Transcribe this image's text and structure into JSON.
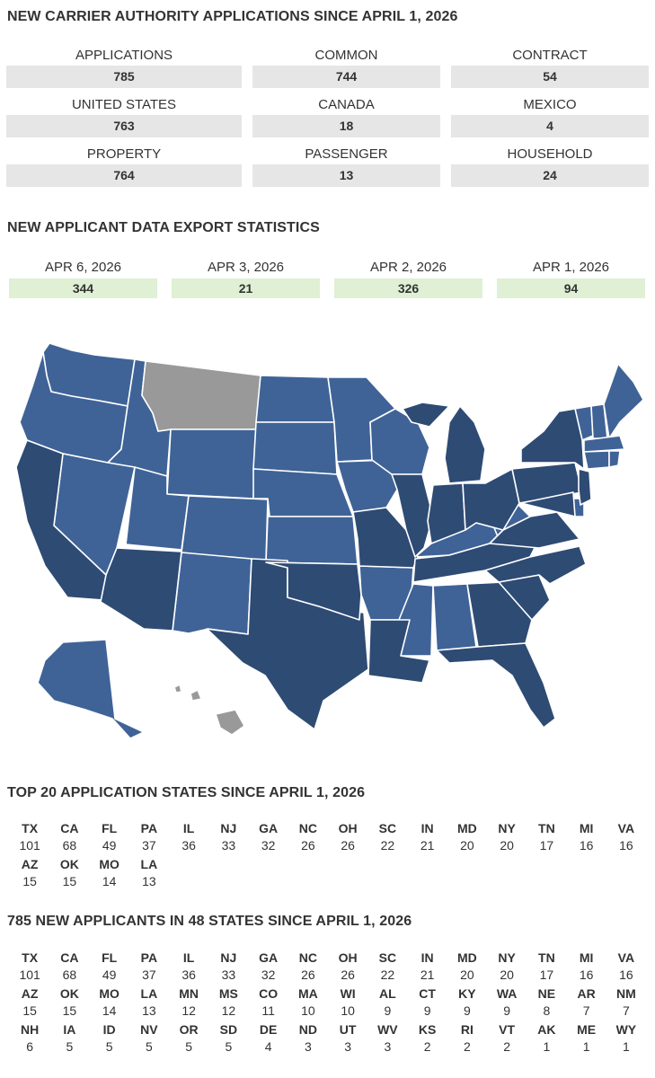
{
  "title1": "NEW CARRIER AUTHORITY APPLICATIONS SINCE APRIL 1, 2026",
  "stats": [
    {
      "label": "APPLICATIONS",
      "value": "785"
    },
    {
      "label": "COMMON",
      "value": "744"
    },
    {
      "label": "CONTRACT",
      "value": "54"
    },
    {
      "label": "UNITED STATES",
      "value": "763"
    },
    {
      "label": "CANADA",
      "value": "18"
    },
    {
      "label": "MEXICO",
      "value": "4"
    },
    {
      "label": "PROPERTY",
      "value": "764"
    },
    {
      "label": "PASSENGER",
      "value": "13"
    },
    {
      "label": "HOUSEHOLD",
      "value": "24"
    }
  ],
  "title2": "NEW APPLICANT DATA EXPORT STATISTICS",
  "exports": [
    {
      "label": "APR 6, 2026",
      "value": "344"
    },
    {
      "label": "APR 3, 2026",
      "value": "21"
    },
    {
      "label": "APR 2, 2026",
      "value": "326"
    },
    {
      "label": "APR 1, 2026",
      "value": "94"
    }
  ],
  "map_colors": {
    "dark": "#2e4b74",
    "mid": "#3f6397",
    "gray": "#999999",
    "export_bg": "#dff0d4",
    "stat_bg": "#e6e6e6"
  },
  "title3": "TOP 20 APPLICATION STATES SINCE APRIL 1, 2026",
  "top20": [
    {
      "code": "TX",
      "count": "101"
    },
    {
      "code": "CA",
      "count": "68"
    },
    {
      "code": "FL",
      "count": "49"
    },
    {
      "code": "PA",
      "count": "37"
    },
    {
      "code": "IL",
      "count": "36"
    },
    {
      "code": "NJ",
      "count": "33"
    },
    {
      "code": "GA",
      "count": "32"
    },
    {
      "code": "NC",
      "count": "26"
    },
    {
      "code": "OH",
      "count": "26"
    },
    {
      "code": "SC",
      "count": "22"
    },
    {
      "code": "IN",
      "count": "21"
    },
    {
      "code": "MD",
      "count": "20"
    },
    {
      "code": "NY",
      "count": "20"
    },
    {
      "code": "TN",
      "count": "17"
    },
    {
      "code": "MI",
      "count": "16"
    },
    {
      "code": "VA",
      "count": "16"
    },
    {
      "code": "AZ",
      "count": "15"
    },
    {
      "code": "OK",
      "count": "15"
    },
    {
      "code": "MO",
      "count": "14"
    },
    {
      "code": "LA",
      "count": "13"
    }
  ],
  "title4": "785 NEW APPLICANTS IN 48 STATES SINCE APRIL 1, 2026",
  "all_states": [
    {
      "code": "TX",
      "count": "101"
    },
    {
      "code": "CA",
      "count": "68"
    },
    {
      "code": "FL",
      "count": "49"
    },
    {
      "code": "PA",
      "count": "37"
    },
    {
      "code": "IL",
      "count": "36"
    },
    {
      "code": "NJ",
      "count": "33"
    },
    {
      "code": "GA",
      "count": "32"
    },
    {
      "code": "NC",
      "count": "26"
    },
    {
      "code": "OH",
      "count": "26"
    },
    {
      "code": "SC",
      "count": "22"
    },
    {
      "code": "IN",
      "count": "21"
    },
    {
      "code": "MD",
      "count": "20"
    },
    {
      "code": "NY",
      "count": "20"
    },
    {
      "code": "TN",
      "count": "17"
    },
    {
      "code": "MI",
      "count": "16"
    },
    {
      "code": "VA",
      "count": "16"
    },
    {
      "code": "AZ",
      "count": "15"
    },
    {
      "code": "OK",
      "count": "15"
    },
    {
      "code": "MO",
      "count": "14"
    },
    {
      "code": "LA",
      "count": "13"
    },
    {
      "code": "MN",
      "count": "12"
    },
    {
      "code": "MS",
      "count": "12"
    },
    {
      "code": "CO",
      "count": "11"
    },
    {
      "code": "MA",
      "count": "10"
    },
    {
      "code": "WI",
      "count": "10"
    },
    {
      "code": "AL",
      "count": "9"
    },
    {
      "code": "CT",
      "count": "9"
    },
    {
      "code": "KY",
      "count": "9"
    },
    {
      "code": "WA",
      "count": "9"
    },
    {
      "code": "NE",
      "count": "8"
    },
    {
      "code": "AR",
      "count": "7"
    },
    {
      "code": "NM",
      "count": "7"
    },
    {
      "code": "NH",
      "count": "6"
    },
    {
      "code": "IA",
      "count": "5"
    },
    {
      "code": "ID",
      "count": "5"
    },
    {
      "code": "NV",
      "count": "5"
    },
    {
      "code": "OR",
      "count": "5"
    },
    {
      "code": "SD",
      "count": "5"
    },
    {
      "code": "DE",
      "count": "4"
    },
    {
      "code": "ND",
      "count": "3"
    },
    {
      "code": "UT",
      "count": "3"
    },
    {
      "code": "WV",
      "count": "3"
    },
    {
      "code": "KS",
      "count": "2"
    },
    {
      "code": "RI",
      "count": "2"
    },
    {
      "code": "VT",
      "count": "2"
    },
    {
      "code": "AK",
      "count": "1"
    },
    {
      "code": "ME",
      "count": "1"
    },
    {
      "code": "WY",
      "count": "1"
    }
  ]
}
